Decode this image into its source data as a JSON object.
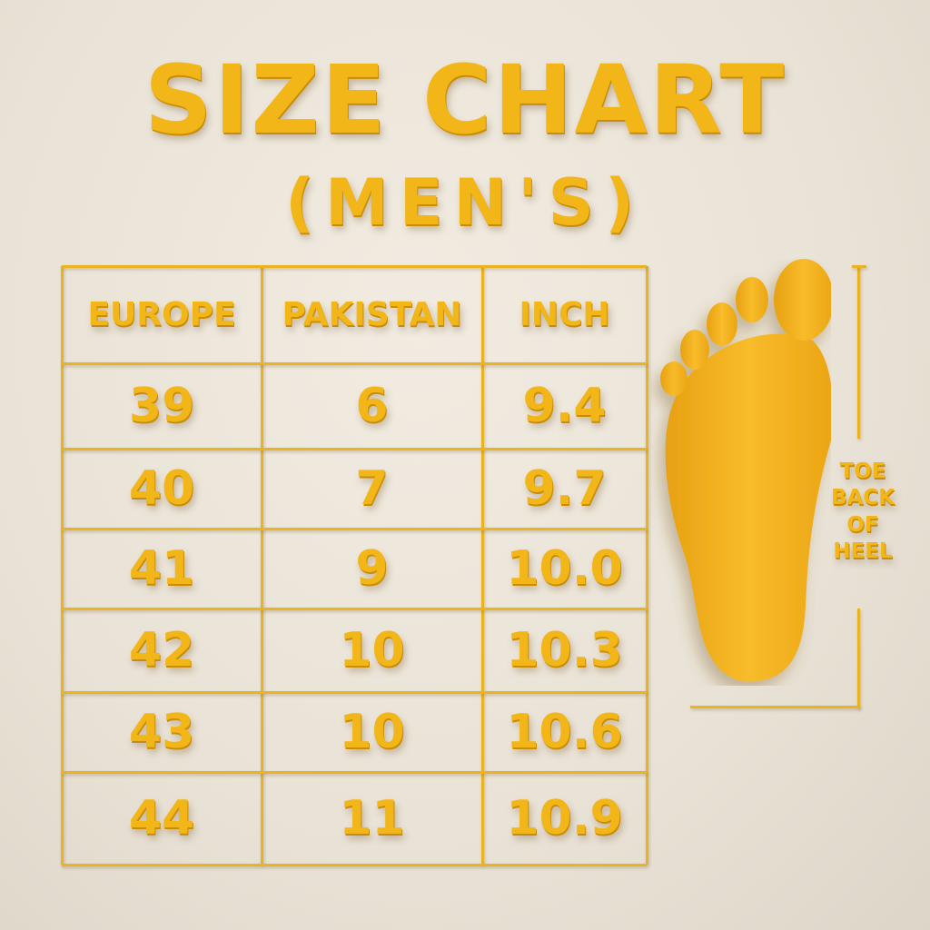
{
  "title": "SIZE CHART",
  "subtitle": "(MEN'S)",
  "table": {
    "headers": [
      "EUROPE",
      "PAKISTAN",
      "INCH"
    ],
    "rows": [
      [
        "39",
        "6",
        "9.4"
      ],
      [
        "40",
        "7",
        "9.7"
      ],
      [
        "41",
        "9",
        "10.0"
      ],
      [
        "42",
        "10",
        "10.3"
      ],
      [
        "43",
        "10",
        "10.6"
      ],
      [
        "44",
        "11",
        "10.9"
      ]
    ]
  },
  "measure_label": {
    "line1": "TOE",
    "line2": "BACK",
    "line3": "OF",
    "line4": "HEEL"
  },
  "icons": {
    "foot": "foot-illustration"
  },
  "colors": {
    "accent": "#f2b619",
    "background": "#ebe4d9"
  }
}
